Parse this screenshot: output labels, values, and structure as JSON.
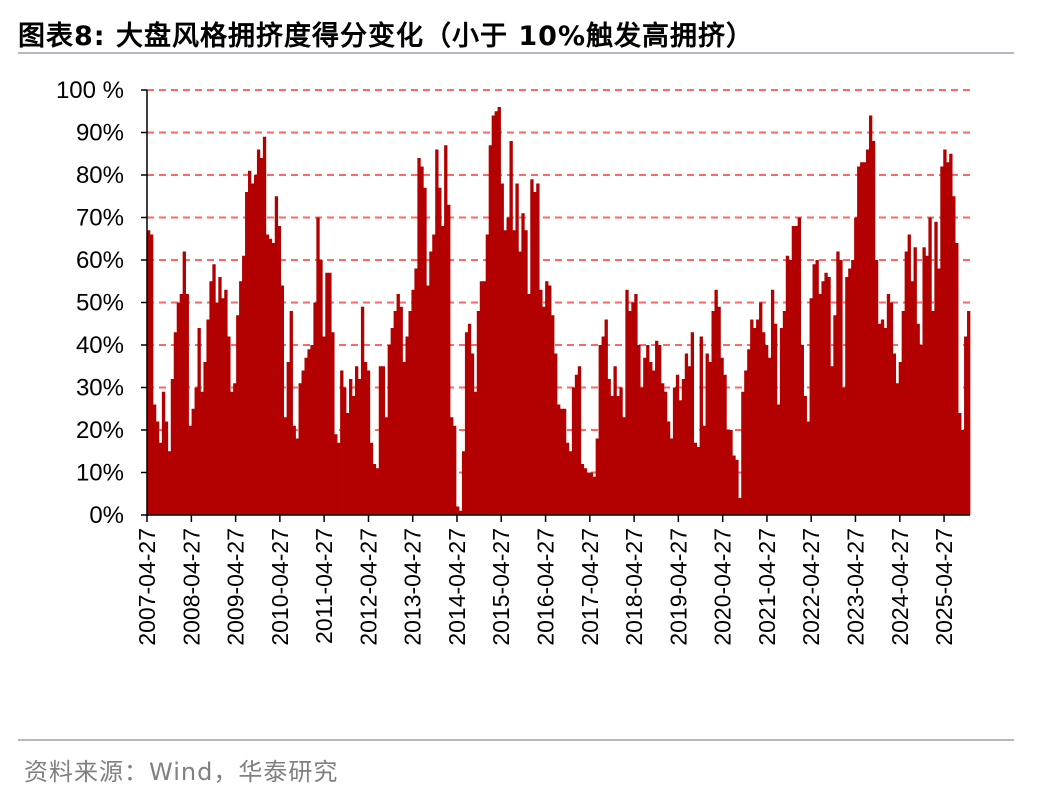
{
  "header": {
    "title": "图表8:   大盘风格拥挤度得分变化（小于 10%触发高拥挤）"
  },
  "footer": {
    "source": "资料来源：Wind，华泰研究"
  },
  "colors": {
    "bar": "#b30000",
    "grid": "#ff6666",
    "rule": "#b3b9c6",
    "source_text": "#808080"
  },
  "chart_data": {
    "type": "bar",
    "title": "",
    "xlabel": "",
    "ylabel": "",
    "ylim": [
      0,
      100
    ],
    "y_unit": "%",
    "grid": "horizontal dashed",
    "y_ticks": [
      "0%",
      "10%",
      "20%",
      "30%",
      "40%",
      "50%",
      "60%",
      "70%",
      "80%",
      "90%",
      "100 %"
    ],
    "x_ticks": [
      "2007-04-27",
      "2008-04-27",
      "2009-04-27",
      "2010-04-27",
      "2011-04-27",
      "2012-04-27",
      "2013-04-27",
      "2014-04-27",
      "2015-04-27",
      "2016-04-27",
      "2017-04-27",
      "2018-04-27",
      "2019-04-27",
      "2020-04-27",
      "2021-04-27",
      "2022-04-27",
      "2023-04-27",
      "2024-04-27",
      "2025-04-27"
    ],
    "x_start": "2007-04-27",
    "x_end": "2025-11-27",
    "series": [
      {
        "values": [
          67,
          66,
          26,
          22,
          17,
          29,
          22,
          15,
          32,
          43,
          50,
          52,
          62,
          52,
          21,
          25,
          30,
          44,
          29,
          36,
          46,
          55,
          59,
          50,
          56,
          51,
          53,
          42,
          29,
          31,
          47,
          55,
          61,
          76,
          81,
          78,
          80,
          86,
          84,
          89,
          66,
          65,
          64,
          75,
          68,
          54,
          23,
          36,
          48,
          21,
          18,
          31,
          34,
          37,
          39,
          40,
          50,
          70,
          60,
          42,
          57,
          57,
          43,
          19,
          17,
          34,
          30,
          24,
          32,
          28,
          35,
          32,
          49,
          36,
          34,
          17,
          12,
          11,
          35,
          35,
          23,
          40,
          44,
          48,
          52,
          49,
          36,
          42,
          48,
          53,
          58,
          84,
          82,
          77,
          54,
          62,
          66,
          86,
          77,
          68,
          87,
          73,
          23,
          21,
          2,
          1,
          15,
          43,
          45,
          38,
          29,
          48,
          55,
          55,
          66,
          87,
          94,
          95,
          96,
          78,
          67,
          70,
          88,
          67,
          78,
          62,
          71,
          67,
          52,
          79,
          76,
          78,
          53,
          49,
          55,
          54,
          47,
          38,
          26,
          25,
          25,
          17,
          15,
          30,
          33,
          35,
          12,
          11,
          10,
          10,
          9,
          18,
          40,
          42,
          46,
          32,
          28,
          35,
          28,
          30,
          23,
          53,
          48,
          50,
          52,
          40,
          30,
          37,
          40,
          36,
          34,
          41,
          40,
          31,
          29,
          22,
          18,
          30,
          33,
          27,
          32,
          38,
          35,
          43,
          17,
          16,
          42,
          21,
          38,
          36,
          48,
          53,
          49,
          37,
          33,
          20,
          20,
          14,
          13,
          4,
          29,
          34,
          39,
          46,
          44,
          46,
          50,
          43,
          40,
          37,
          53,
          45,
          26,
          44,
          48,
          61,
          60,
          68,
          68,
          70,
          40,
          28,
          22,
          51,
          59,
          60,
          52,
          55,
          57,
          56,
          35,
          47,
          62,
          60,
          30,
          56,
          58,
          60,
          70,
          82,
          83,
          83,
          86,
          94,
          88,
          60,
          45,
          46,
          44,
          52,
          50,
          38,
          31,
          36,
          48,
          62,
          66,
          55,
          63,
          45,
          40,
          63,
          61,
          70,
          48,
          69,
          58,
          82,
          86,
          83,
          85,
          75,
          64,
          24,
          20,
          42,
          48
        ]
      }
    ]
  }
}
